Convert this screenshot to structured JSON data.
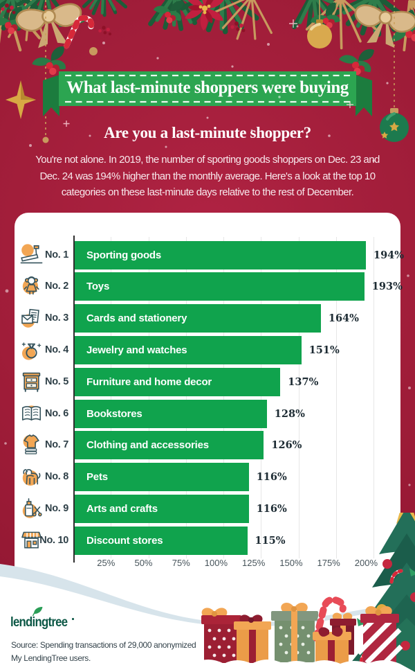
{
  "banner": {
    "title": "What last-minute shoppers were buying"
  },
  "heading": "Are you a last-minute shopper?",
  "intro_lines": [
    "You're not alone. In 2019, the number of sporting goods shoppers on Dec. 23 and",
    "Dec. 24 was 194% higher than the monthly average. Here's a look at the top 10",
    "categories on these last-minute days relative to the rest of December."
  ],
  "chart_data": {
    "type": "bar",
    "orientation": "horizontal",
    "categories": [
      "Sporting goods",
      "Toys",
      "Cards and stationery",
      "Jewelry and watches",
      "Furniture and home decor",
      "Bookstores",
      "Clothing and accessories",
      "Pets",
      "Arts and crafts",
      "Discount stores"
    ],
    "values": [
      194,
      193,
      164,
      151,
      137,
      128,
      126,
      116,
      116,
      115
    ],
    "value_labels": [
      "194%",
      "193%",
      "164%",
      "151%",
      "137%",
      "128%",
      "126%",
      "116%",
      "116%",
      "115%"
    ],
    "ranks": [
      "No. 1",
      "No. 2",
      "No. 3",
      "No. 4",
      "No. 5",
      "No. 6",
      "No. 7",
      "No. 8",
      "No. 9",
      "No. 10"
    ],
    "icons": [
      "treadmill-icon",
      "doll-icon",
      "cards-icon",
      "ring-icon",
      "furniture-icon",
      "book-icon",
      "tshirt-icon",
      "dog-icon",
      "crafts-icon",
      "store-icon"
    ],
    "x_tick_labels": [
      "25%",
      "50%",
      "75%",
      "100%",
      "125%",
      "150%",
      "175%",
      "200%"
    ],
    "x_tick_values": [
      25,
      50,
      75,
      100,
      125,
      150,
      175,
      200
    ],
    "xlim": [
      0,
      215
    ],
    "grid": true,
    "bar_color": "#10a34d",
    "value_label_position": "right-of-bar"
  },
  "footer": {
    "logo_text": "lendingtree",
    "source_lines": [
      "Source: Spending transactions of 29,000 anonymized",
      "My LendingTree users."
    ]
  },
  "colors": {
    "background_red": "#a01d39",
    "banner_green": "#2ca551",
    "bar_green": "#10a34d",
    "accent_orange": "#f2a654",
    "logo_green": "#0b5745"
  }
}
